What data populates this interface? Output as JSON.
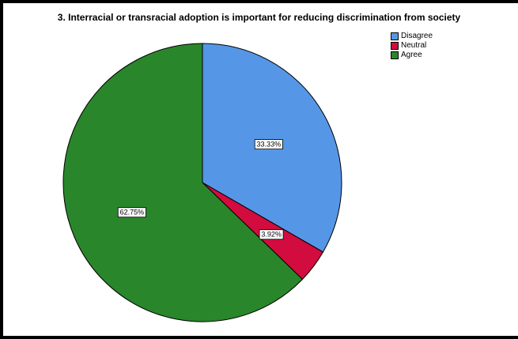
{
  "chart_data": {
    "type": "pie",
    "title": "3. Interracial or transracial adoption is important for reducing discrimination from society",
    "categories": [
      "Disagree",
      "Neutral",
      "Agree"
    ],
    "values": [
      33.33,
      3.92,
      62.75
    ],
    "labels": [
      "33.33%",
      "3.92%",
      "62.75%"
    ],
    "colors": [
      "#5597e6",
      "#d20c3e",
      "#2a862b"
    ],
    "legend_position": "top-right",
    "start_angle": "12 o'clock",
    "direction": "clockwise"
  }
}
